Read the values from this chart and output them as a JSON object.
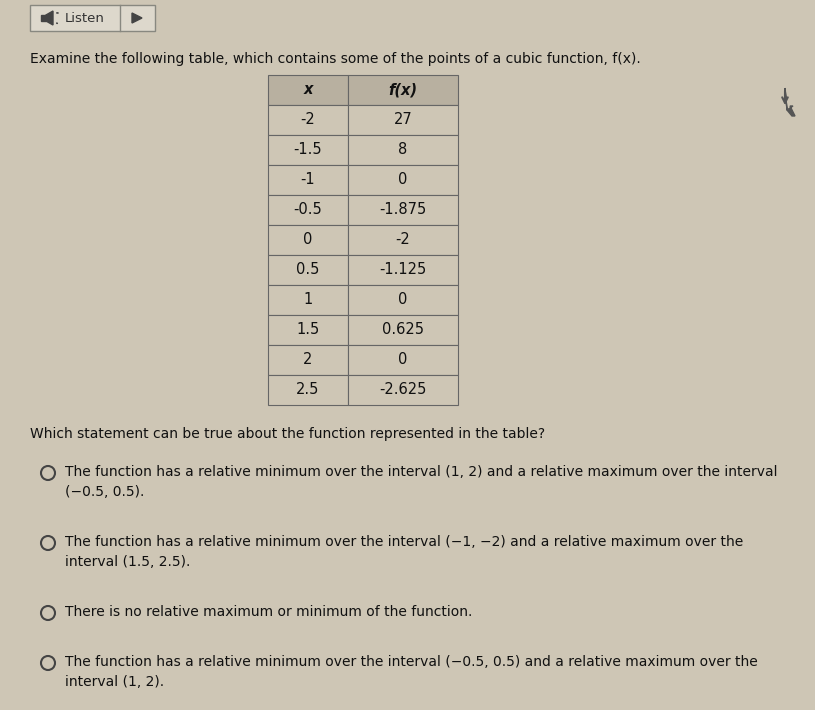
{
  "background_color": "#cec6b5",
  "listen_box_color": "#ddd8cc",
  "table_header_color": "#b8b0a0",
  "table_cell_color": "#cec6b5",
  "title_text": "Examine the following table, which contains some of the points of a cubic function, f(x).",
  "table_x_str": [
    "-2",
    "-1.5",
    "-1",
    "-0.5",
    "0",
    "0.5",
    "1",
    "1.5",
    "2",
    "2.5"
  ],
  "table_fx_str": [
    "27",
    "8",
    "0",
    "-1.875",
    "-2",
    "-1.125",
    "0",
    "0.625",
    "0",
    "-2.625"
  ],
  "header_col1": "x",
  "header_col2": "f(x)",
  "question": "Which statement can be true about the function represented in the table?",
  "options": [
    [
      "The function has a relative minimum over the interval (1, 2) and a relative maximum over the interval",
      "(−0.5, 0.5)."
    ],
    [
      "The function has a relative minimum over the interval (−1, −2) and a relative maximum over the",
      "interval (1.5, 2.5)."
    ],
    [
      "There is no relative maximum or minimum of the function."
    ],
    [
      "The function has a relative minimum over the interval (−0.5, 0.5) and a relative maximum over the",
      "interval (1, 2)."
    ]
  ],
  "option_has_radio": [
    true,
    true,
    true,
    true
  ],
  "figsize": [
    8.15,
    7.1
  ],
  "dpi": 100
}
